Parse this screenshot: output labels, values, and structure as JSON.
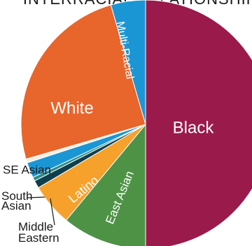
{
  "chart_data": {
    "type": "pie",
    "title": "INTERRACIAL RELATIONSHIPS",
    "slices": [
      {
        "label": "Black",
        "value": 50.0,
        "color": "#9b1a4c"
      },
      {
        "label": "East Asian",
        "value": 11.0,
        "color": "#4e9246"
      },
      {
        "label": "Latino",
        "value": 5.5,
        "color": "#f6a12c"
      },
      {
        "label": "Middle Eastern",
        "value": 1.0,
        "color": "#0f3f4c"
      },
      {
        "label": "South Asian",
        "value": 0.5,
        "color": "#2a8c8a"
      },
      {
        "label": "SE Asian",
        "value": 2.0,
        "color": "#1b96d4"
      },
      {
        "label": "",
        "value": 0.5,
        "color": "#f5efe0"
      },
      {
        "label": "White",
        "value": 25.0,
        "color": "#e8652c"
      },
      {
        "label": "Multi-Racial",
        "value": 4.5,
        "color": "#1b96d4"
      }
    ],
    "legend": "none"
  }
}
